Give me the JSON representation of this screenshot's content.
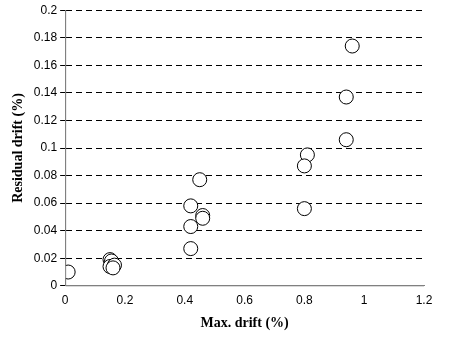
{
  "chart_data": {
    "type": "scatter",
    "x_label": "Max. drift (%)",
    "y_label": "Residual drift (%)",
    "x": [
      0.01,
      0.15,
      0.155,
      0.15,
      0.165,
      0.16,
      0.42,
      0.45,
      0.42,
      0.42,
      0.46,
      0.46,
      0.81,
      0.8,
      0.8,
      0.94,
      0.94,
      0.96
    ],
    "values": [
      0.01,
      0.019,
      0.018,
      0.014,
      0.015,
      0.013,
      0.058,
      0.077,
      0.043,
      0.027,
      0.051,
      0.049,
      0.095,
      0.087,
      0.056,
      0.137,
      0.106,
      0.174
    ],
    "color": "#000000",
    "marker": "circle",
    "xlim": [
      0,
      1.2
    ],
    "xticks": [
      0,
      0.2,
      0.4,
      0.6,
      0.8,
      1,
      1.2
    ],
    "ylim": [
      0,
      0.2
    ],
    "yticks": [
      0,
      0.02,
      0.04,
      0.06,
      0.08,
      0.1,
      0.12,
      0.14,
      0.16,
      0.18,
      0.2
    ],
    "grid": "y"
  }
}
